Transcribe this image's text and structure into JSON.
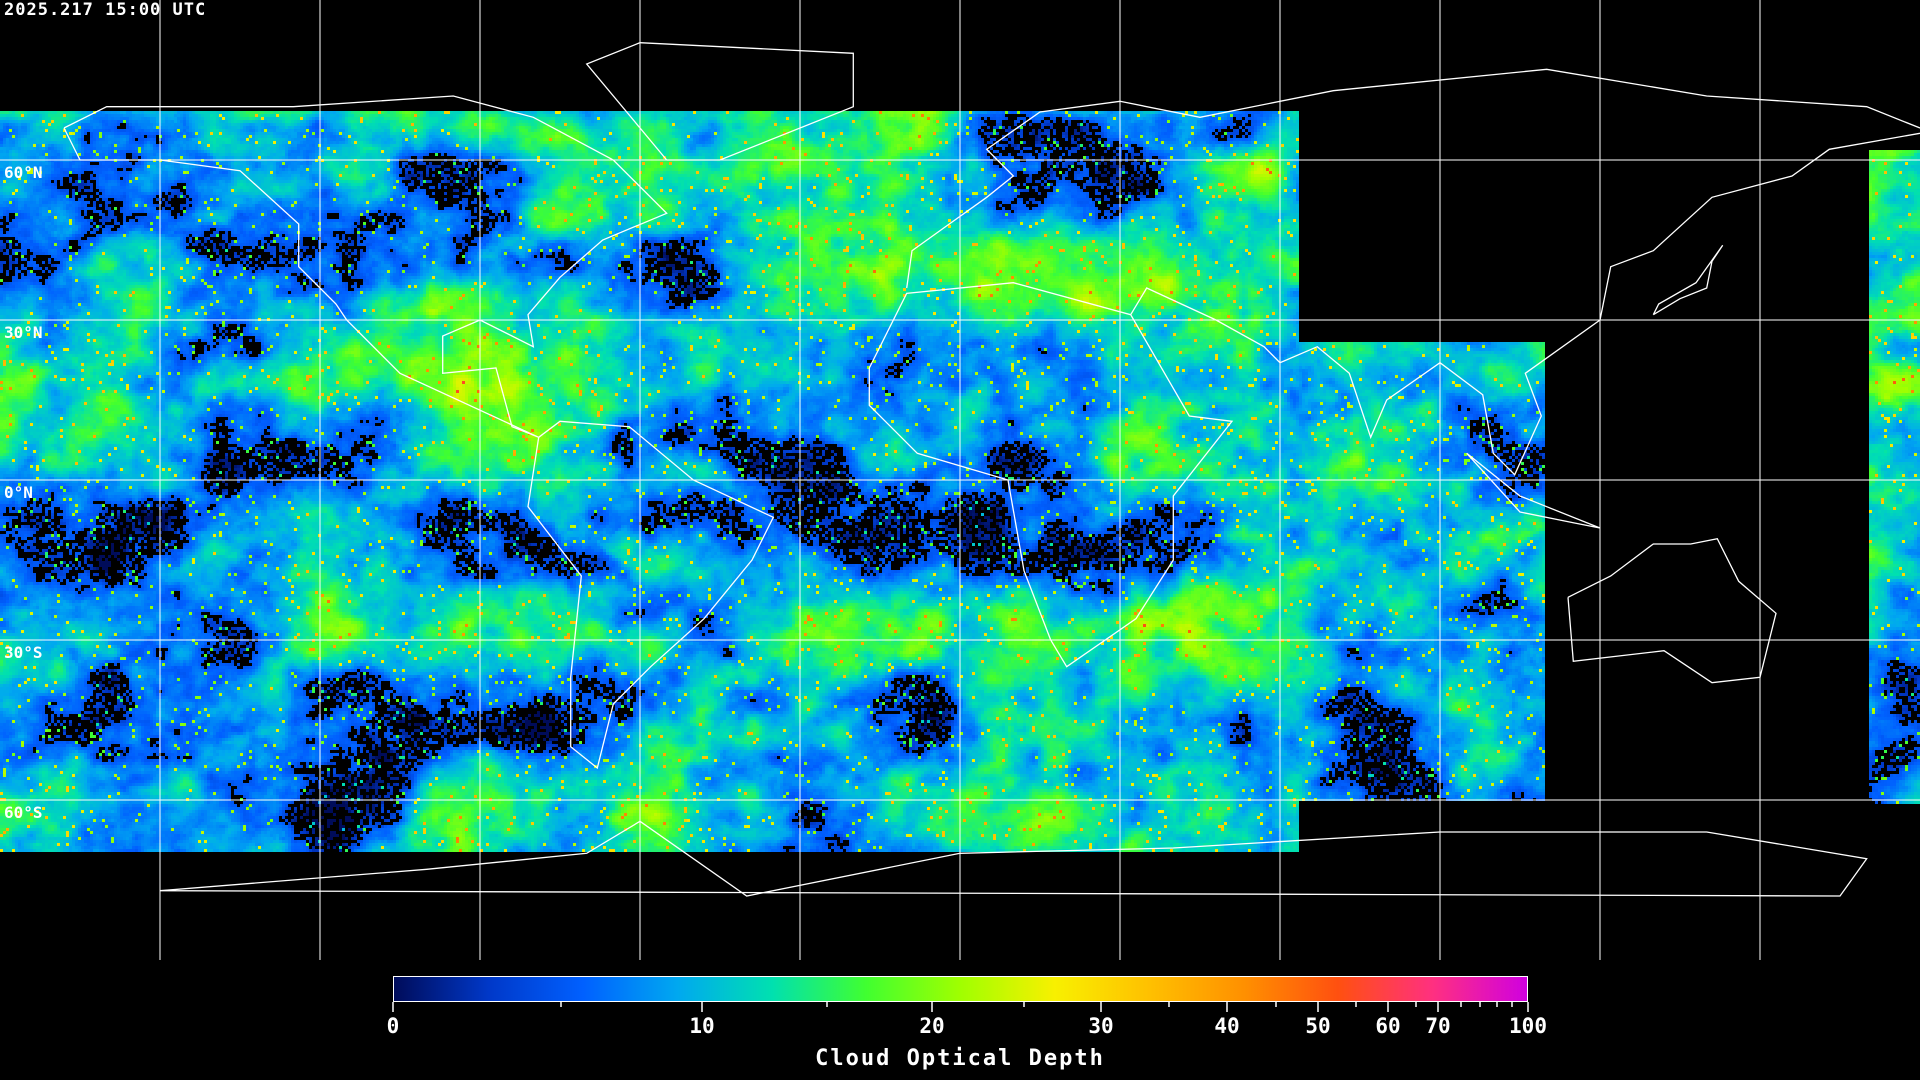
{
  "timestamp": "2025.217 15:00 UTC",
  "map": {
    "projection": "equirectangular",
    "lon_range": [
      -180,
      180
    ],
    "lat_range": [
      -90,
      90
    ],
    "grid_spacing_deg": 30,
    "lat_labels": [
      "60°N",
      "30°N",
      "0°N",
      "30°S",
      "60°S"
    ],
    "grid_color": "#ffffff",
    "coastline_color": "#ffffff",
    "no_data_color": "#000000"
  },
  "colorbar": {
    "title": "Cloud Optical Depth",
    "min": 0,
    "max": 100,
    "major_ticks": [
      "0",
      "10",
      "20",
      "30",
      "40",
      "50",
      "60",
      "70",
      "100"
    ],
    "colors": [
      "#000c5a",
      "#0038c8",
      "#0060ff",
      "#00a8f0",
      "#00e0b0",
      "#40ff30",
      "#a0ff00",
      "#f8f000",
      "#ffc000",
      "#ff9000",
      "#ff5010",
      "#ff3080",
      "#d000e0"
    ]
  }
}
